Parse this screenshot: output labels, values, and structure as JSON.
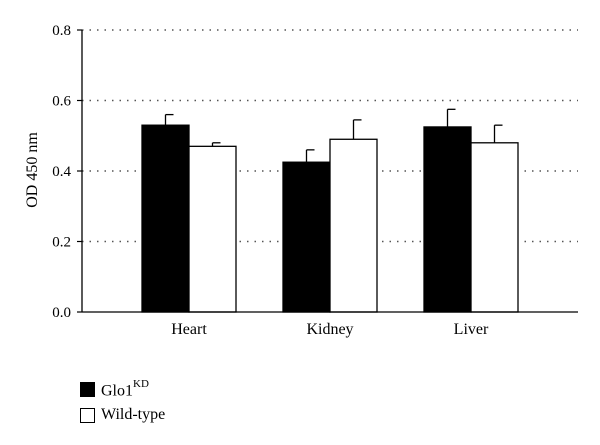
{
  "chart_data": {
    "type": "bar",
    "categories": [
      "Heart",
      "Kidney",
      "Liver"
    ],
    "series": [
      {
        "name": "Glo1KD",
        "name_base": "Glo1",
        "name_sup": "KD",
        "color": "#000000",
        "values": [
          0.53,
          0.425,
          0.525
        ],
        "errors": [
          0.03,
          0.035,
          0.05
        ]
      },
      {
        "name": "Wild-type",
        "color": "#ffffff",
        "values": [
          0.47,
          0.49,
          0.48
        ],
        "errors": [
          0.01,
          0.055,
          0.05
        ]
      }
    ],
    "ylabel": "OD 450 nm",
    "ylim": [
      0,
      0.8
    ],
    "yticks": [
      "0.0",
      "0.2",
      "0.4",
      "0.6",
      "0.8"
    ],
    "grid": "dotted horizontal",
    "legend_position": "bottom-left"
  }
}
